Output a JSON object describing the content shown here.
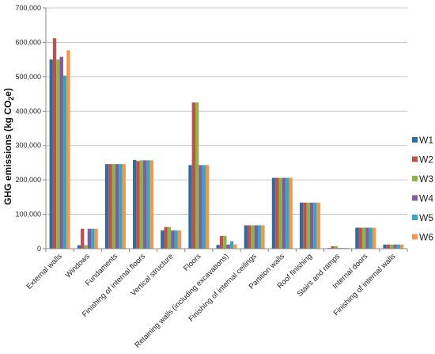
{
  "chart_data": {
    "type": "bar",
    "title": "",
    "xlabel": "",
    "ylabel": "GHG emissions (kg CO",
    "ylabel_sub": "2",
    "ylabel_end": "e)",
    "ylim": [
      0,
      700000
    ],
    "yticks": [
      "0",
      "100,000",
      "200,000",
      "300,000",
      "400,000",
      "500,000",
      "600,000",
      "700,000"
    ],
    "grid": true,
    "legend_position": "right",
    "categories": [
      "External walls",
      "Windows",
      "Fundaments",
      "Finishing of internal floors",
      "Vertical structure",
      "Floors",
      "Retaining walls (including excavations)",
      "Finishing of internal ceilings",
      "Partition walls",
      "Roof finishing",
      "Stairs and ramps",
      "Internal doors",
      "Finishing of internal walls"
    ],
    "series": [
      {
        "name": "W1",
        "color": "#2e6da4",
        "values": [
          550000,
          10000,
          246000,
          258000,
          53000,
          243000,
          11000,
          68000,
          206000,
          134000,
          2000,
          61000,
          12000
        ]
      },
      {
        "name": "W2",
        "color": "#c0504d",
        "values": [
          612000,
          58000,
          246000,
          255000,
          63000,
          425000,
          37000,
          68000,
          206000,
          134000,
          7000,
          61000,
          12000
        ]
      },
      {
        "name": "W3",
        "color": "#8db43f",
        "values": [
          550000,
          10000,
          246000,
          257000,
          63000,
          425000,
          37000,
          68000,
          206000,
          134000,
          7000,
          61000,
          12000
        ]
      },
      {
        "name": "W4",
        "color": "#7e5ba2",
        "values": [
          558000,
          58000,
          246000,
          257000,
          53000,
          243000,
          12000,
          68000,
          206000,
          134000,
          2000,
          61000,
          12000
        ]
      },
      {
        "name": "W5",
        "color": "#31a8c6",
        "values": [
          503000,
          58000,
          246000,
          257000,
          53000,
          243000,
          22000,
          68000,
          206000,
          134000,
          2000,
          61000,
          12000
        ]
      },
      {
        "name": "W6",
        "color": "#f79646",
        "values": [
          577000,
          58000,
          246000,
          257000,
          53000,
          243000,
          12000,
          68000,
          206000,
          134000,
          2000,
          61000,
          12000
        ]
      }
    ]
  }
}
